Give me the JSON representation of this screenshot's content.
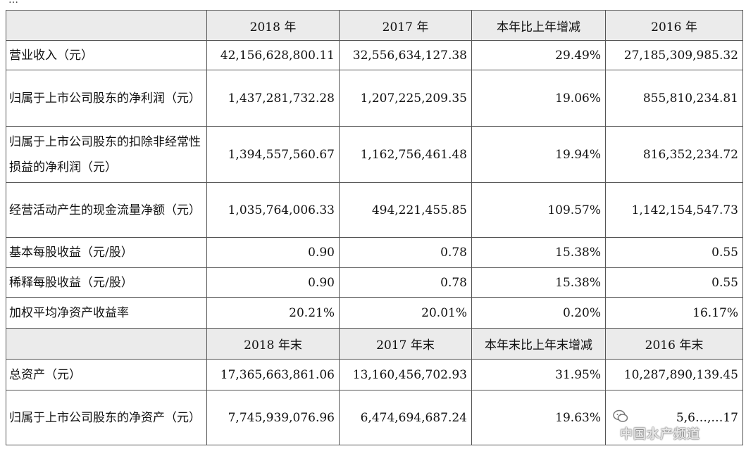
{
  "top_fragment": "…",
  "headers_period": [
    "2018 年",
    "2017 年",
    "本年比上年增减",
    "2016 年"
  ],
  "headers_period_end": [
    "2018 年末",
    "2017 年末",
    "本年末比上年末增减",
    "2016 年末"
  ],
  "rows": [
    {
      "label": "营业收入（元）",
      "values": [
        "42,156,628,800.11",
        "32,556,634,127.38",
        "29.49%",
        "27,185,309,985.32"
      ]
    },
    {
      "label": "归属于上市公司股东的净利润（元）",
      "values": [
        "1,437,281,732.28",
        "1,207,225,209.35",
        "19.06%",
        "855,810,234.81"
      ]
    },
    {
      "label": "归属于上市公司股东的扣除非经常性损益的净利润（元）",
      "values": [
        "1,394,557,560.67",
        "1,162,756,461.48",
        "19.94%",
        "816,352,234.72"
      ]
    },
    {
      "label": "经营活动产生的现金流量净额（元）",
      "values": [
        "1,035,764,006.33",
        "494,221,455.85",
        "109.57%",
        "1,142,154,547.73"
      ]
    },
    {
      "label": "基本每股收益（元/股）",
      "values": [
        "0.90",
        "0.78",
        "15.38%",
        "0.55"
      ]
    },
    {
      "label": "稀释每股收益（元/股）",
      "values": [
        "0.90",
        "0.78",
        "15.38%",
        "0.55"
      ]
    },
    {
      "label": "加权平均净资产收益率",
      "values": [
        "20.21%",
        "20.01%",
        "0.20%",
        "16.17%"
      ]
    }
  ],
  "rows_period_end": [
    {
      "label": "总资产（元）",
      "values": [
        "17,365,663,861.06",
        "13,160,456,702.93",
        "31.95%",
        "10,287,890,139.45"
      ]
    },
    {
      "label": "归属于上市公司股东的净资产（元）",
      "values": [
        "7,745,939,076.96",
        "6,474,694,687.24",
        "19.63%",
        "5,6…,…17"
      ]
    }
  ],
  "watermark": {
    "text": "中国水产频道",
    "icon": "wechat-icon"
  }
}
